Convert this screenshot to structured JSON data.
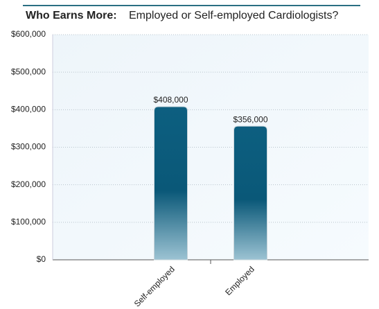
{
  "chart_data": {
    "type": "bar",
    "title": "Who Earns More:",
    "subtitle": "Employed or Self-employed Cardiologists?",
    "categories": [
      "Self-employed",
      "Employed"
    ],
    "values": [
      408000,
      356000
    ],
    "value_labels": [
      "$408,000",
      "$356,000"
    ],
    "color": "#0d5f80",
    "ylim": [
      0,
      600000
    ],
    "yticks": [
      {
        "value": 0,
        "label": "$0"
      },
      {
        "value": 100000,
        "label": "$100,000"
      },
      {
        "value": 200000,
        "label": "$200,000"
      },
      {
        "value": 300000,
        "label": "$300,000"
      },
      {
        "value": 400000,
        "label": "$400,000"
      },
      {
        "value": 500000,
        "label": "$500,000"
      },
      {
        "value": 600000,
        "label": "$600,000"
      }
    ],
    "grid": true
  }
}
